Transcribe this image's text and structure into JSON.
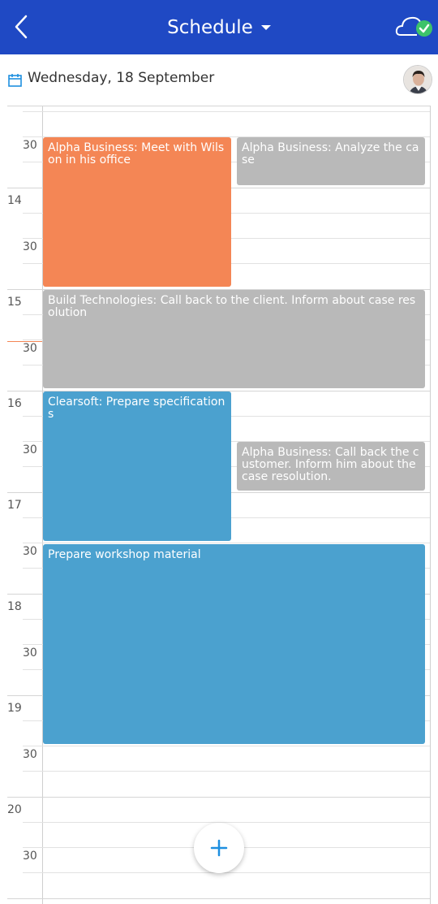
{
  "header": {
    "title": "Schedule",
    "back_icon": "chevron-left-icon",
    "sync_icon": "cloud-check-icon",
    "color": "#1f49c4"
  },
  "date_bar": {
    "date": "Wednesday, 18 September",
    "calendar_icon": "calendar-icon",
    "avatar": "user-avatar"
  },
  "time_labels": {
    "h14": "14",
    "h15": "15",
    "h16": "16",
    "h17": "17",
    "h18": "18",
    "h19": "19",
    "h20": "20",
    "half": "30"
  },
  "events": [
    {
      "text": "Alpha Business: Meet with Wilson in his office",
      "color": "#f48655"
    },
    {
      "text": "Alpha Business: Analyze the case",
      "color": "#b9b9b9"
    },
    {
      "text": "Build Technologies: Call back to the client. Inform about case resolution",
      "color": "#b9b9b9"
    },
    {
      "text": "Clearsoft: Prepare specifications",
      "color": "#4ba1cf"
    },
    {
      "text": "Alpha Business: Call back the customer. Inform him about the case resolution.",
      "color": "#b9b9b9"
    },
    {
      "text": "Prepare workshop material",
      "color": "#4ba1cf"
    }
  ],
  "fab": {
    "label": "+",
    "icon": "plus-icon"
  }
}
